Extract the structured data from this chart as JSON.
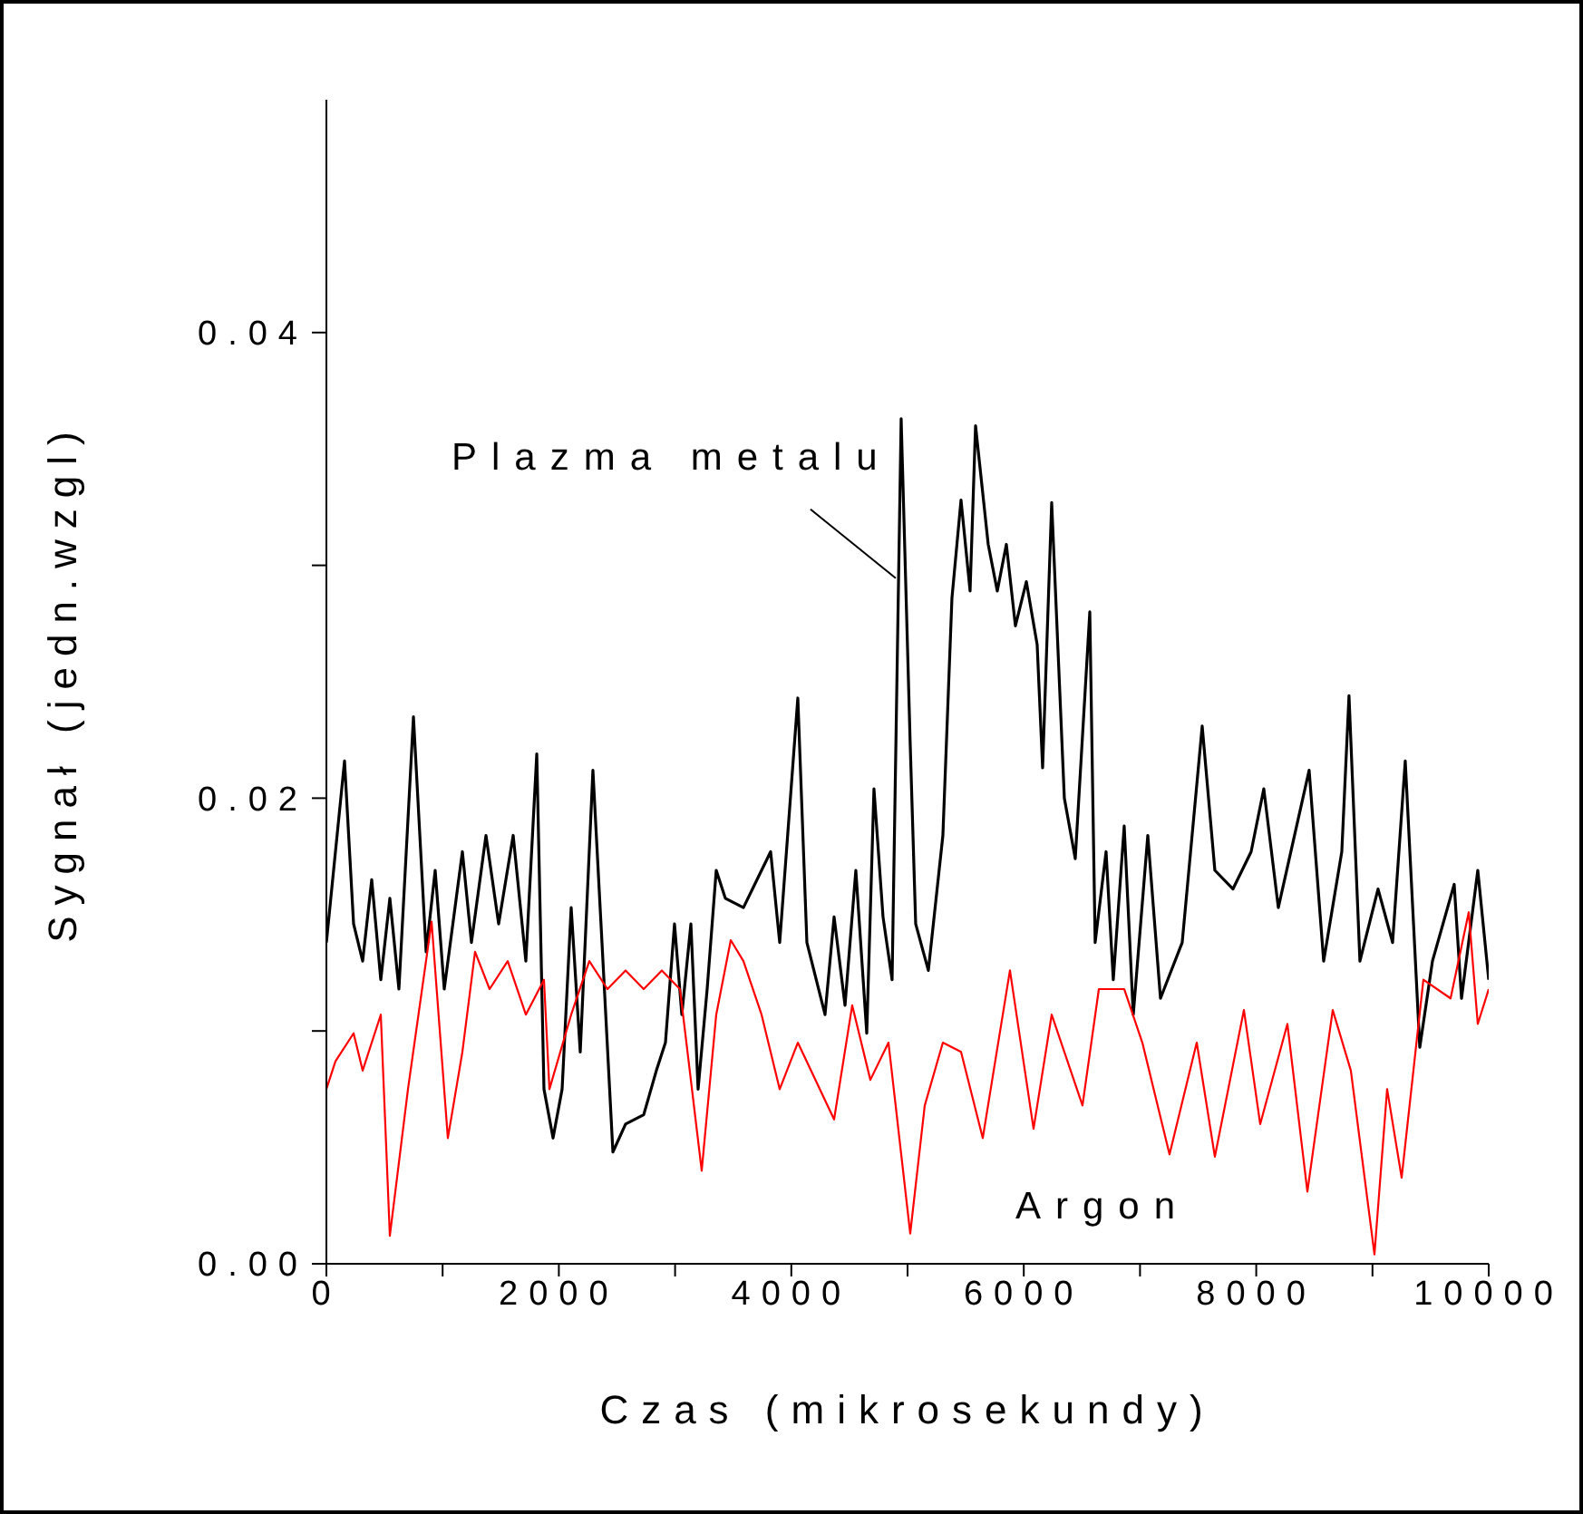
{
  "chart_data": {
    "type": "line",
    "xlabel": "Czas (mikrosekundy)",
    "ylabel": "Sygnał (jedn.wzgl)",
    "xlim": [
      0,
      10000
    ],
    "ylim": [
      0,
      0.05
    ],
    "xticks": [
      0,
      {
        "value": 1000,
        "label": null
      },
      2000,
      {
        "value": 3000,
        "label": null
      },
      4000,
      {
        "value": 5000,
        "label": null
      },
      6000,
      {
        "value": 7000,
        "label": null
      },
      8000,
      {
        "value": 9000,
        "label": null
      },
      10000
    ],
    "yticks": [
      {
        "value": 0,
        "label": "0.00"
      },
      {
        "value": 0.01,
        "label": null
      },
      {
        "value": 0.02,
        "label": "0.02"
      },
      {
        "value": 0.03,
        "label": null
      },
      {
        "value": 0.04,
        "label": "0.04"
      }
    ],
    "grid": false,
    "legend": false,
    "marker": "none",
    "line_style": "solid",
    "series": [
      {
        "name": "Plazma metalu",
        "color": "#000000",
        "x": [
          0,
          78,
          156,
          234,
          312,
          390,
          468,
          546,
          624,
          749,
          858,
          936,
          1014,
          1170,
          1248,
          1373,
          1482,
          1607,
          1716,
          1810,
          1872,
          1950,
          2028,
          2106,
          2184,
          2293,
          2371,
          2465,
          2574,
          2730,
          2839,
          2917,
          2995,
          3058,
          3136,
          3198,
          3276,
          3354,
          3432,
          3588,
          3744,
          3822,
          3900,
          4056,
          4134,
          4290,
          4368,
          4462,
          4555,
          4649,
          4711,
          4789,
          4867,
          4945,
          5023,
          5070,
          5179,
          5304,
          5382,
          5460,
          5538,
          5585,
          5694,
          5772,
          5850,
          5928,
          6022,
          6115,
          6162,
          6240,
          6349,
          6443,
          6568,
          6614,
          6708,
          6770,
          6864,
          6942,
          7067,
          7176,
          7238,
          7363,
          7535,
          7644,
          7800,
          7956,
          8065,
          8190,
          8455,
          8580,
          8736,
          8798,
          8892,
          9048,
          9173,
          9282,
          9407,
          9516,
          9703,
          9766,
          9906,
          10000
        ],
        "values": [
          0.0138,
          0.0177,
          0.0216,
          0.0146,
          0.013,
          0.0165,
          0.0122,
          0.0157,
          0.0118,
          0.0235,
          0.0134,
          0.0169,
          0.0118,
          0.0177,
          0.0138,
          0.0184,
          0.0146,
          0.0184,
          0.013,
          0.0219,
          0.0075,
          0.0054,
          0.0075,
          0.0153,
          0.0091,
          0.0212,
          0.0138,
          0.0048,
          0.006,
          0.0064,
          0.0083,
          0.0095,
          0.0146,
          0.0107,
          0.0146,
          0.0075,
          0.0118,
          0.0169,
          0.0157,
          0.0153,
          0.0169,
          0.0177,
          0.0138,
          0.0243,
          0.0138,
          0.0107,
          0.0149,
          0.0111,
          0.0169,
          0.0099,
          0.0204,
          0.0149,
          0.0122,
          0.0363,
          0.0223,
          0.0146,
          0.0126,
          0.0184,
          0.0286,
          0.0328,
          0.0289,
          0.036,
          0.0309,
          0.0289,
          0.0309,
          0.0274,
          0.0293,
          0.0266,
          0.0213,
          0.0327,
          0.02,
          0.0174,
          0.028,
          0.0138,
          0.0177,
          0.0122,
          0.0188,
          0.0107,
          0.0184,
          0.0114,
          0.0122,
          0.0138,
          0.0231,
          0.0169,
          0.0161,
          0.0177,
          0.0204,
          0.0153,
          0.0212,
          0.013,
          0.0177,
          0.0244,
          0.013,
          0.0161,
          0.0138,
          0.0216,
          0.0093,
          0.013,
          0.0163,
          0.0114,
          0.0169,
          0.0122
        ]
      },
      {
        "name": "Argon",
        "color": "#ff0000",
        "x": [
          0,
          78,
          234,
          312,
          468,
          546,
          702,
          905,
          1045,
          1170,
          1279,
          1404,
          1560,
          1716,
          1872,
          1919,
          2106,
          2262,
          2418,
          2574,
          2730,
          2886,
          3042,
          3229,
          3354,
          3479,
          3588,
          3744,
          3900,
          4056,
          4368,
          4524,
          4680,
          4836,
          5023,
          5148,
          5304,
          5460,
          5647,
          5881,
          6084,
          6240,
          6505,
          6646,
          6864,
          7020,
          7254,
          7488,
          7644,
          7894,
          8034,
          8268,
          8440,
          8658,
          8814,
          9017,
          9126,
          9251,
          9438,
          9672,
          9828,
          9906,
          10000
        ],
        "values": [
          0.0075,
          0.0087,
          0.0099,
          0.0083,
          0.0107,
          0.0012,
          0.0075,
          0.0147,
          0.0054,
          0.0091,
          0.0134,
          0.0118,
          0.013,
          0.0107,
          0.0122,
          0.0075,
          0.0107,
          0.013,
          0.0118,
          0.0126,
          0.0118,
          0.0126,
          0.0118,
          0.004,
          0.0107,
          0.0139,
          0.013,
          0.0107,
          0.0075,
          0.0095,
          0.0062,
          0.0111,
          0.0079,
          0.0095,
          0.0013,
          0.0068,
          0.0095,
          0.0091,
          0.0054,
          0.0126,
          0.0058,
          0.0107,
          0.0068,
          0.0118,
          0.0118,
          0.0095,
          0.0047,
          0.0095,
          0.0046,
          0.0109,
          0.006,
          0.0103,
          0.0031,
          0.0109,
          0.0083,
          0.0004,
          0.0075,
          0.0037,
          0.0122,
          0.0114,
          0.0151,
          0.0103,
          0.0118
        ]
      }
    ]
  }
}
